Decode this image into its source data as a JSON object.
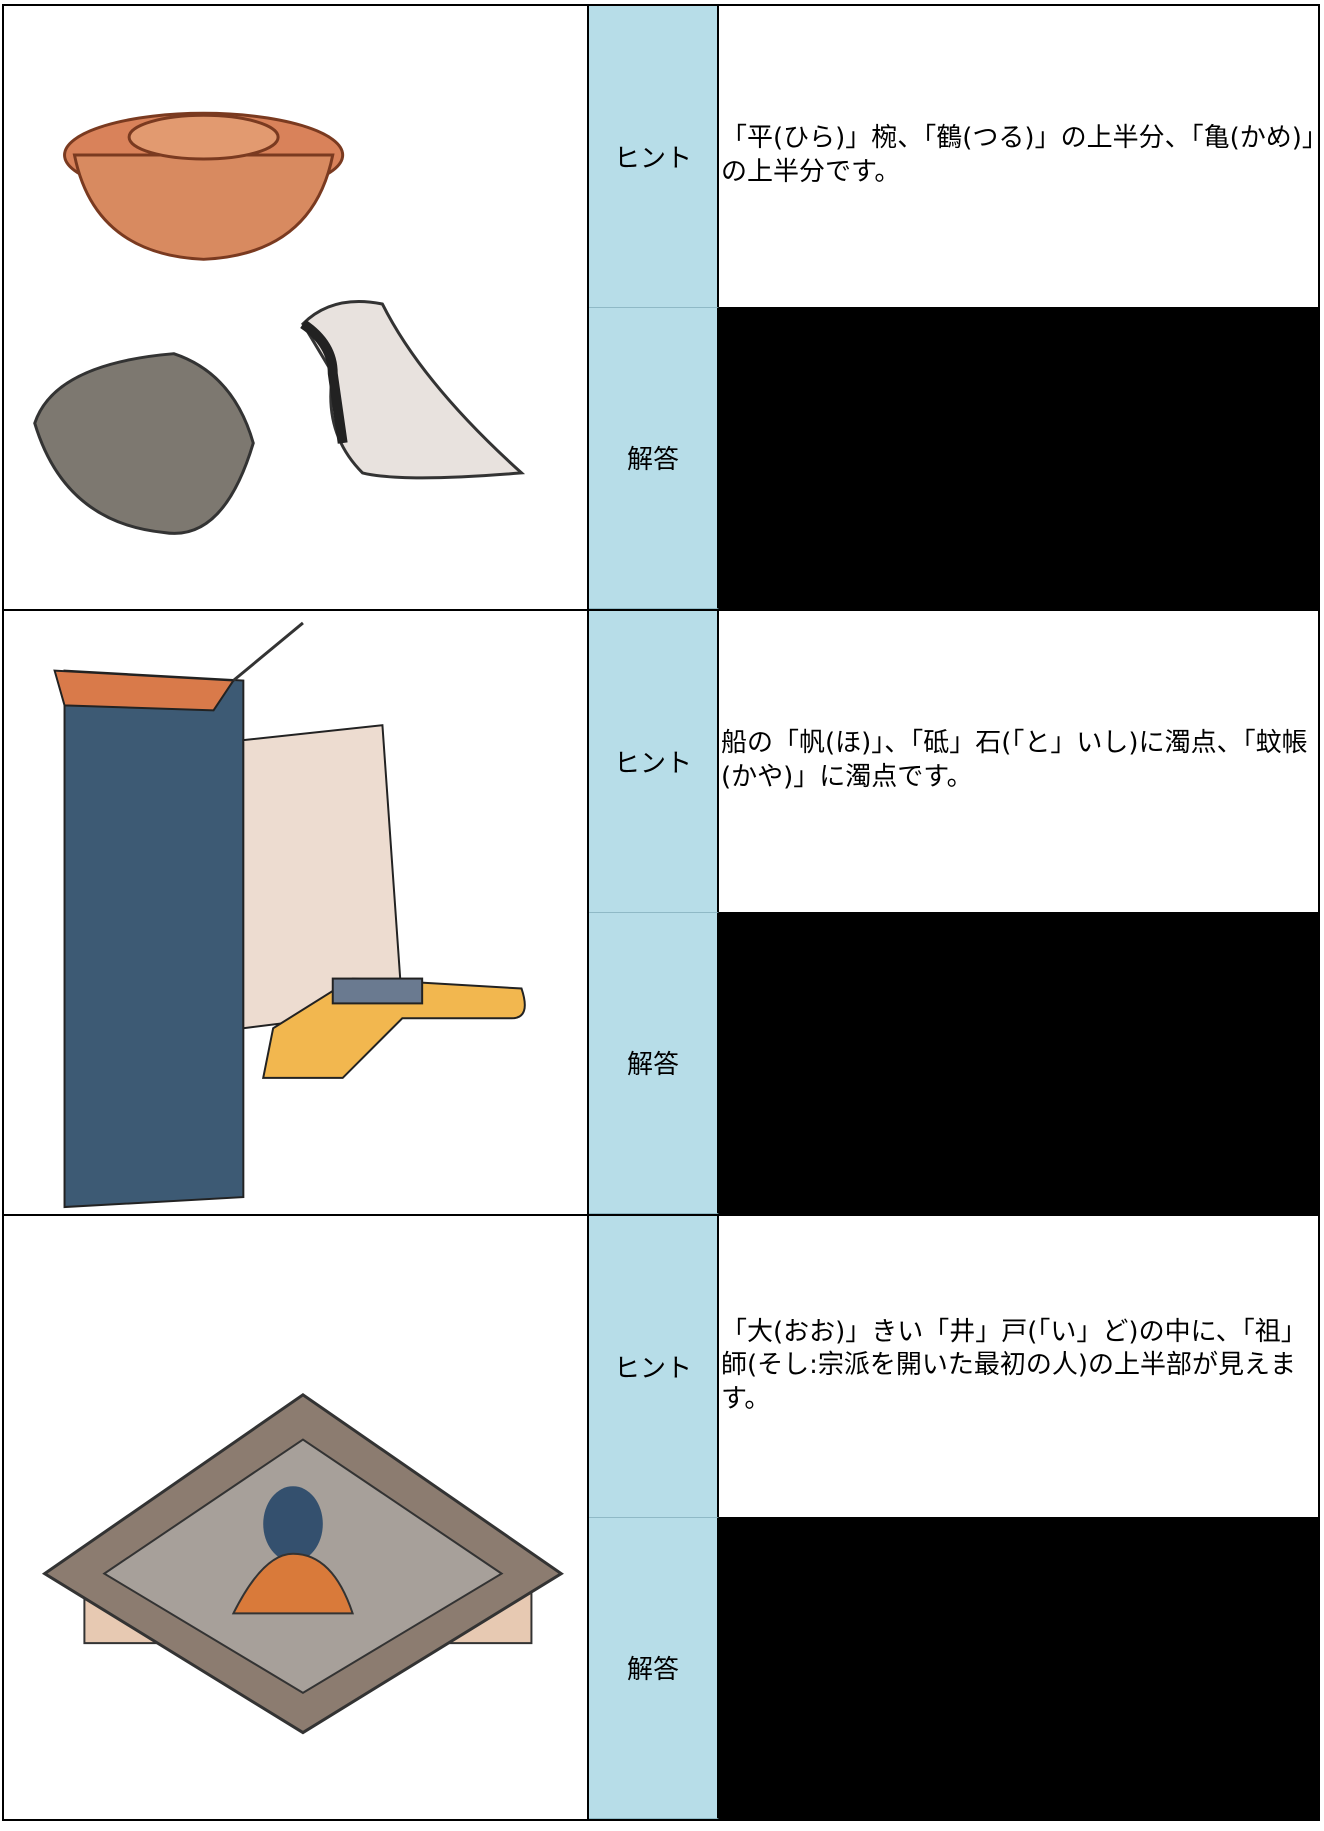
{
  "rows": [
    {
      "hint_label": "ヒント",
      "hint": "「平(ひら)」椀、「鶴(つる)」の上半分、「亀(かめ)」の上半分です。",
      "answer_label": "解答"
    },
    {
      "hint_label": "ヒント",
      "hint": "船の「帆(ほ)」、「砥」石(「と」いし)に濁点、「蚊帳(かや)」に濁点です。",
      "answer_label": "解答"
    },
    {
      "hint_label": "ヒント",
      "hint": "「大(おお)」きい「井」戸(「い」ど)の中に、「祖」師(そし:宗派を開いた最初の人)の上半部が見えます。",
      "answer_label": "解答"
    }
  ]
}
